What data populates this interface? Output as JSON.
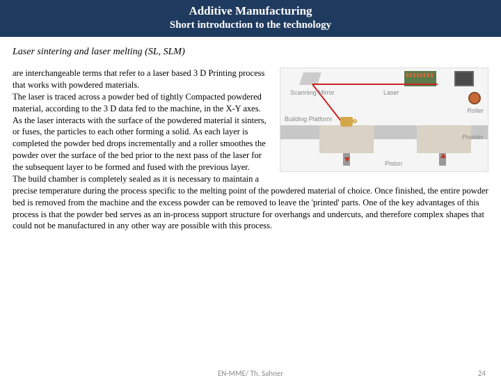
{
  "header": {
    "title": "Additive Manufacturing",
    "subtitle": "Short introduction to the technology"
  },
  "section": {
    "heading": "Laser sintering and laser melting (SL, SLM)"
  },
  "body": {
    "text": "are interchangeable terms that refer to a laser based 3 D Printing process that works with powdered materials.\nThe laser is  traced across a powder bed of tightly Compacted  powdered material, according to the 3 D data fed to the machine, in the X-Y axes.\nAs the laser interacts with the surface of the powdered material it sinters, or fuses, the particles to each other forming a solid. As each layer is completed the powder bed drops incrementally and a roller smoothes the powder over the surface of the bed prior to the next pass of the laser for the subsequent layer to be formed and fused with the previous layer.\nThe build chamber is completely sealed as it is necessary to maintain a precise temperature during the process specific to the melting point of the powdered material of choice. Once finished, the entire powder bed is removed from the machine and the excess powder can be removed to leave the 'printed' parts. One of the key advantages of this process is that the powder bed serves as an in-process support structure for overhangs and undercuts, and therefore complex shapes that could not be manufactured in any other way are possible with this process."
  },
  "diagram": {
    "labels": {
      "scanning_mirror": "Scanning Mirror",
      "laser": "Laser",
      "roller": "Roller",
      "building_platform": "Building Platform",
      "powder": "Powder",
      "piston": "Piston"
    },
    "colors": {
      "bg": "#f5f5f5",
      "platform": "#c7c7c7",
      "powder": "#d9d2c5",
      "laser_beam": "#cc2222",
      "roller": "#c76a3a",
      "pcb": "#5a7a4a",
      "chip": "#4a4a4a",
      "mug": "#d4a84a",
      "arrow": "#c0392b"
    }
  },
  "footer": {
    "center": "EN-MME/ Th. Sahner",
    "page": "24"
  }
}
